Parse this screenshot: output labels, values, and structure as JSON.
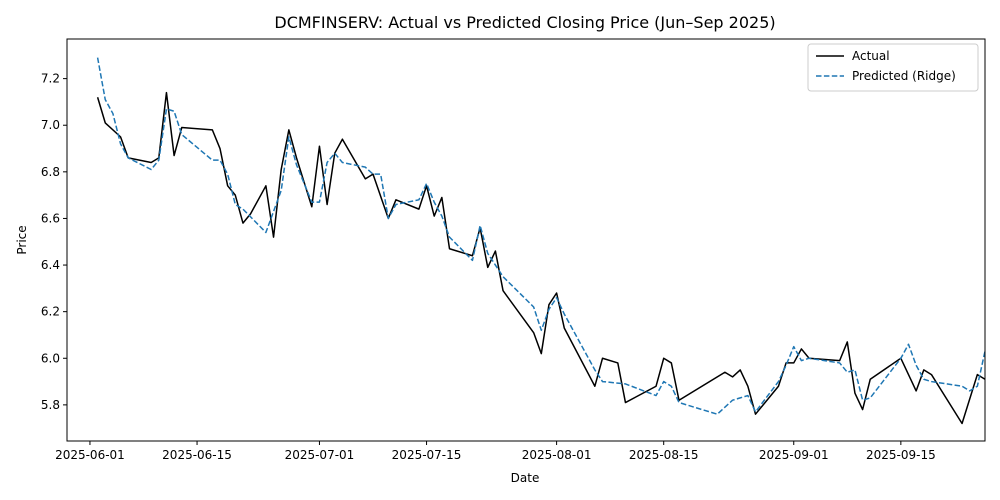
{
  "chart_data": {
    "type": "line",
    "title": "DCMFINSERV: Actual vs Predicted Closing Price (Jun–Sep 2025)",
    "xlabel": "Date",
    "ylabel": "Price",
    "xlim": [
      "2025-05-29",
      "2025-09-26"
    ],
    "ylim": [
      5.645,
      7.37
    ],
    "x_ticks": [
      "2025-06-01",
      "2025-06-15",
      "2025-07-01",
      "2025-07-15",
      "2025-08-01",
      "2025-08-15",
      "2025-09-01",
      "2025-09-15"
    ],
    "y_ticks": [
      "5.8",
      "6.0",
      "6.2",
      "6.4",
      "6.6",
      "6.8",
      "7.0",
      "7.2"
    ],
    "grid": false,
    "legend_position": "top-right",
    "series": [
      {
        "name": "Actual",
        "color": "#000000",
        "dash": "solid",
        "points": [
          [
            "2025-06-02",
            7.12
          ],
          [
            "2025-06-03",
            7.01
          ],
          [
            "2025-06-05",
            6.95
          ],
          [
            "2025-06-06",
            6.86
          ],
          [
            "2025-06-09",
            6.84
          ],
          [
            "2025-06-10",
            6.86
          ],
          [
            "2025-06-11",
            7.14
          ],
          [
            "2025-06-12",
            6.87
          ],
          [
            "2025-06-13",
            6.99
          ],
          [
            "2025-06-17",
            6.98
          ],
          [
            "2025-06-18",
            6.9
          ],
          [
            "2025-06-19",
            6.74
          ],
          [
            "2025-06-20",
            6.7
          ],
          [
            "2025-06-21",
            6.58
          ],
          [
            "2025-06-22",
            6.62
          ],
          [
            "2025-06-24",
            6.74
          ],
          [
            "2025-06-25",
            6.52
          ],
          [
            "2025-06-26",
            6.81
          ],
          [
            "2025-06-27",
            6.98
          ],
          [
            "2025-06-28",
            6.86
          ],
          [
            "2025-06-30",
            6.65
          ],
          [
            "2025-07-01",
            6.91
          ],
          [
            "2025-07-02",
            6.66
          ],
          [
            "2025-07-03",
            6.88
          ],
          [
            "2025-07-04",
            6.94
          ],
          [
            "2025-07-07",
            6.77
          ],
          [
            "2025-07-08",
            6.79
          ],
          [
            "2025-07-10",
            6.6
          ],
          [
            "2025-07-11",
            6.68
          ],
          [
            "2025-07-14",
            6.64
          ],
          [
            "2025-07-15",
            6.74
          ],
          [
            "2025-07-16",
            6.61
          ],
          [
            "2025-07-17",
            6.69
          ],
          [
            "2025-07-18",
            6.47
          ],
          [
            "2025-07-21",
            6.44
          ],
          [
            "2025-07-22",
            6.56
          ],
          [
            "2025-07-23",
            6.39
          ],
          [
            "2025-07-24",
            6.46
          ],
          [
            "2025-07-25",
            6.29
          ],
          [
            "2025-07-29",
            6.11
          ],
          [
            "2025-07-30",
            6.02
          ],
          [
            "2025-07-31",
            6.23
          ],
          [
            "2025-08-01",
            6.28
          ],
          [
            "2025-08-02",
            6.13
          ],
          [
            "2025-08-06",
            5.88
          ],
          [
            "2025-08-07",
            6.0
          ],
          [
            "2025-08-09",
            5.98
          ],
          [
            "2025-08-10",
            5.81
          ],
          [
            "2025-08-14",
            5.88
          ],
          [
            "2025-08-15",
            6.0
          ],
          [
            "2025-08-16",
            5.98
          ],
          [
            "2025-08-17",
            5.82
          ],
          [
            "2025-08-23",
            5.94
          ],
          [
            "2025-08-24",
            5.92
          ],
          [
            "2025-08-25",
            5.95
          ],
          [
            "2025-08-26",
            5.88
          ],
          [
            "2025-08-27",
            5.76
          ],
          [
            "2025-08-30",
            5.88
          ],
          [
            "2025-08-31",
            5.98
          ],
          [
            "2025-09-01",
            5.98
          ],
          [
            "2025-09-02",
            6.04
          ],
          [
            "2025-09-03",
            6.0
          ],
          [
            "2025-09-07",
            5.99
          ],
          [
            "2025-09-08",
            6.07
          ],
          [
            "2025-09-09",
            5.85
          ],
          [
            "2025-09-10",
            5.78
          ],
          [
            "2025-09-11",
            5.91
          ],
          [
            "2025-09-15",
            6.0
          ],
          [
            "2025-09-17",
            5.86
          ],
          [
            "2025-09-18",
            5.95
          ],
          [
            "2025-09-19",
            5.93
          ],
          [
            "2025-09-23",
            5.72
          ],
          [
            "2025-09-25",
            5.93
          ],
          [
            "2025-09-26",
            5.91
          ]
        ]
      },
      {
        "name": "Predicted (Ridge)",
        "color": "#1f77b4",
        "dash": "dashed",
        "points": [
          [
            "2025-06-02",
            7.29
          ],
          [
            "2025-06-03",
            7.11
          ],
          [
            "2025-06-04",
            7.05
          ],
          [
            "2025-06-05",
            6.92
          ],
          [
            "2025-06-06",
            6.86
          ],
          [
            "2025-06-09",
            6.81
          ],
          [
            "2025-06-10",
            6.85
          ],
          [
            "2025-06-11",
            7.07
          ],
          [
            "2025-06-12",
            7.06
          ],
          [
            "2025-06-13",
            6.96
          ],
          [
            "2025-06-17",
            6.85
          ],
          [
            "2025-06-18",
            6.85
          ],
          [
            "2025-06-19",
            6.79
          ],
          [
            "2025-06-20",
            6.66
          ],
          [
            "2025-06-21",
            6.64
          ],
          [
            "2025-06-24",
            6.54
          ],
          [
            "2025-06-25",
            6.63
          ],
          [
            "2025-06-26",
            6.72
          ],
          [
            "2025-06-27",
            6.95
          ],
          [
            "2025-06-28",
            6.83
          ],
          [
            "2025-06-30",
            6.67
          ],
          [
            "2025-07-01",
            6.67
          ],
          [
            "2025-07-02",
            6.84
          ],
          [
            "2025-07-03",
            6.88
          ],
          [
            "2025-07-04",
            6.84
          ],
          [
            "2025-07-07",
            6.82
          ],
          [
            "2025-07-08",
            6.79
          ],
          [
            "2025-07-09",
            6.79
          ],
          [
            "2025-07-10",
            6.6
          ],
          [
            "2025-07-11",
            6.66
          ],
          [
            "2025-07-14",
            6.68
          ],
          [
            "2025-07-15",
            6.75
          ],
          [
            "2025-07-16",
            6.67
          ],
          [
            "2025-07-17",
            6.61
          ],
          [
            "2025-07-18",
            6.52
          ],
          [
            "2025-07-21",
            6.42
          ],
          [
            "2025-07-22",
            6.57
          ],
          [
            "2025-07-23",
            6.45
          ],
          [
            "2025-07-24",
            6.4
          ],
          [
            "2025-07-25",
            6.35
          ],
          [
            "2025-07-29",
            6.22
          ],
          [
            "2025-07-30",
            6.12
          ],
          [
            "2025-07-31",
            6.21
          ],
          [
            "2025-08-01",
            6.26
          ],
          [
            "2025-08-02",
            6.19
          ],
          [
            "2025-08-06",
            5.95
          ],
          [
            "2025-08-07",
            5.9
          ],
          [
            "2025-08-10",
            5.89
          ],
          [
            "2025-08-14",
            5.84
          ],
          [
            "2025-08-15",
            5.9
          ],
          [
            "2025-08-16",
            5.88
          ],
          [
            "2025-08-17",
            5.81
          ],
          [
            "2025-08-22",
            5.76
          ],
          [
            "2025-08-24",
            5.82
          ],
          [
            "2025-08-25",
            5.83
          ],
          [
            "2025-08-26",
            5.84
          ],
          [
            "2025-08-27",
            5.77
          ],
          [
            "2025-08-30",
            5.9
          ],
          [
            "2025-08-31",
            5.97
          ],
          [
            "2025-09-01",
            6.05
          ],
          [
            "2025-09-02",
            5.99
          ],
          [
            "2025-09-03",
            6.0
          ],
          [
            "2025-09-07",
            5.98
          ],
          [
            "2025-09-08",
            5.94
          ],
          [
            "2025-09-09",
            5.95
          ],
          [
            "2025-09-10",
            5.82
          ],
          [
            "2025-09-11",
            5.83
          ],
          [
            "2025-09-15",
            6.0
          ],
          [
            "2025-09-16",
            6.06
          ],
          [
            "2025-09-17",
            5.97
          ],
          [
            "2025-09-18",
            5.91
          ],
          [
            "2025-09-19",
            5.9
          ],
          [
            "2025-09-23",
            5.88
          ],
          [
            "2025-09-24",
            5.86
          ],
          [
            "2025-09-25",
            5.88
          ],
          [
            "2025-09-26",
            6.03
          ]
        ]
      }
    ]
  }
}
